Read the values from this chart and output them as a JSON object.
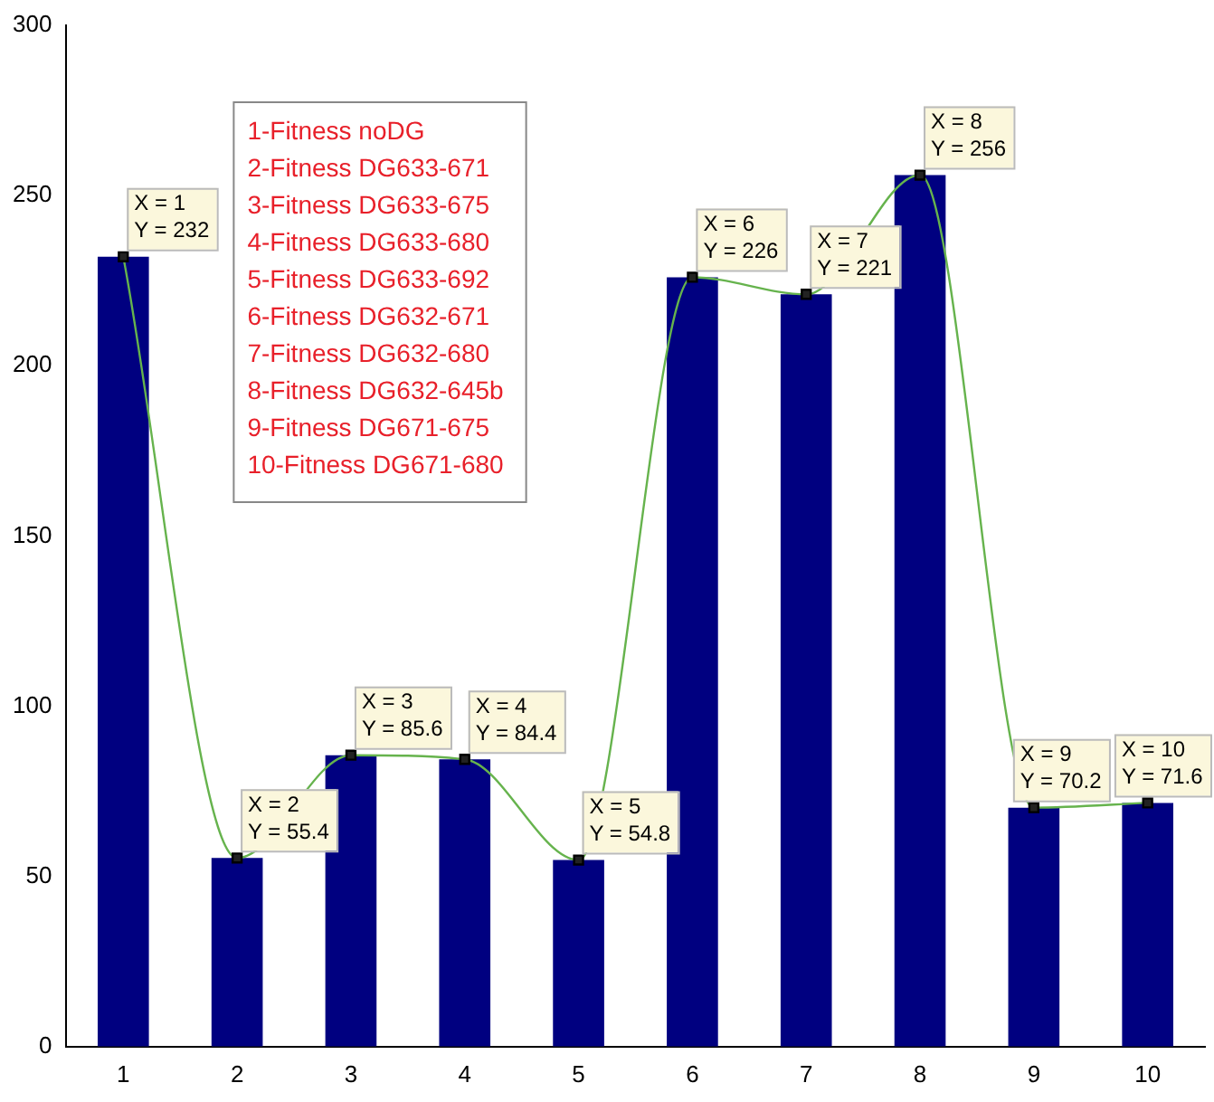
{
  "chart_data": {
    "type": "bar",
    "categories": [
      "1",
      "2",
      "3",
      "4",
      "5",
      "6",
      "7",
      "8",
      "9",
      "10"
    ],
    "series": [
      {
        "color": "#000080",
        "values": [
          232,
          55.4,
          85.6,
          84.4,
          54.8,
          226,
          221,
          256,
          70.2,
          71.6
        ]
      },
      {
        "type": "line",
        "color": "#66b34d",
        "marker": "square",
        "values": [
          232,
          55.4,
          85.6,
          84.4,
          54.8,
          226,
          221,
          256,
          70.2,
          71.6
        ]
      }
    ],
    "ylim": [
      0,
      300
    ],
    "yticks": [
      0,
      50,
      100,
      150,
      200,
      250,
      300
    ],
    "grid": false,
    "legend": false,
    "annotations": [
      "1-Fitness noDG\n2-Fitness DG633-671\n3-Fitness DG633-675\n4-Fitness DG633-680\n5-Fitness DG633-692\n6-Fitness DG632-671\n7-Fitness DG632-680\n8-Fitness DG632-645b\n9-Fitness DG671-675\n10-Fitness DG671-680",
      {
        "text": "X = 1\nY = 232",
        "x": "1",
        "y": 232
      },
      {
        "text": "X = 2\nY = 55.4",
        "x": "2",
        "y": 55.4
      },
      {
        "text": "X = 3\nY = 85.6",
        "x": "3",
        "y": 85.6
      },
      {
        "text": "X = 4\nY = 84.4",
        "x": "4",
        "y": 84.4
      },
      {
        "text": "X = 5\nY = 54.8",
        "x": "5",
        "y": 54.8
      },
      {
        "text": "X = 6\nY = 226",
        "x": "6",
        "y": 226
      },
      {
        "text": "X = 7\nY = 221",
        "x": "7",
        "y": 221
      },
      {
        "text": "X = 8\nY = 256",
        "x": "8",
        "y": 256
      },
      {
        "text": "X = 9\nY = 70.2",
        "x": "9",
        "y": 70.2
      },
      {
        "text": "X = 10\nY = 71.6",
        "x": "10",
        "y": 71.6
      }
    ]
  }
}
